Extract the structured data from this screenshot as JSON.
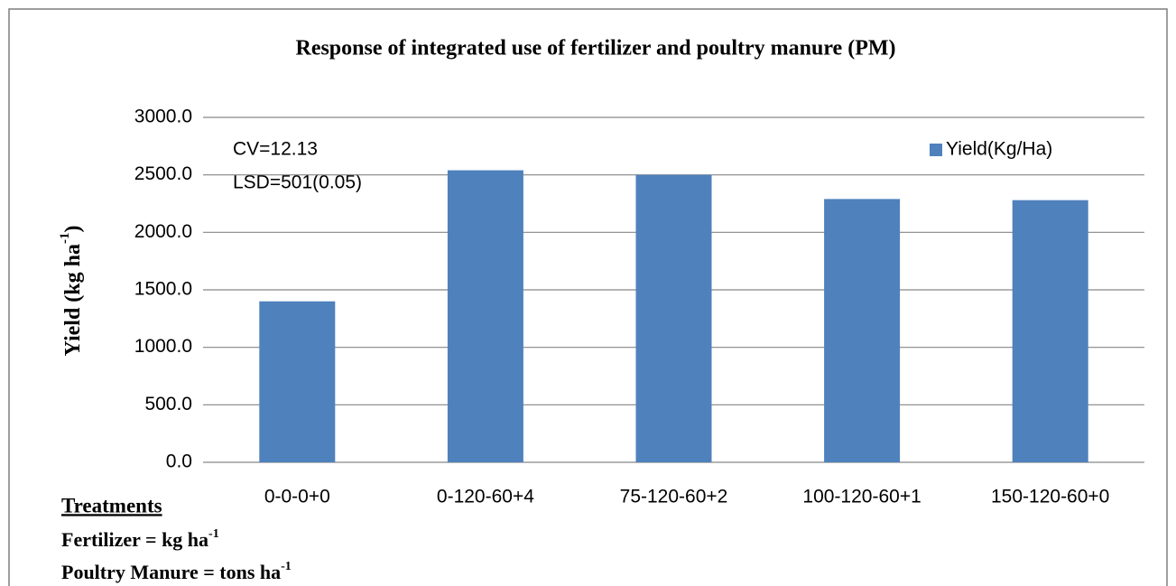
{
  "chart_data": {
    "type": "bar",
    "title": "Response of integrated use of fertilizer and poultry manure (PM)",
    "y_label": [
      "Yield (kg ha",
      "-1",
      ")"
    ],
    "categories": [
      "0-0-0+0",
      "0-120-60+4",
      "75-120-60+2",
      "100-120-60+1",
      "150-120-60+0"
    ],
    "series": [
      {
        "name": "Yield(Kg/Ha)",
        "color": "#4f81bd",
        "values": [
          1400,
          2540,
          2500,
          2290,
          2280
        ]
      }
    ],
    "ylim": [
      0,
      3000
    ],
    "yticks": [
      {
        "value": 0,
        "label": "0.0"
      },
      {
        "value": 500,
        "label": "500.0"
      },
      {
        "value": 1000,
        "label": "1000.0"
      },
      {
        "value": 1500,
        "label": "1500.0"
      },
      {
        "value": 2000,
        "label": "2000.0"
      },
      {
        "value": 2500,
        "label": "2500.0"
      },
      {
        "value": 3000,
        "label": "3000.0"
      }
    ],
    "grid": true,
    "legend": "top-right",
    "annotations": [
      "CV=12.13",
      "LSD=501(0.05)"
    ],
    "footnote": {
      "heading": "Treatments",
      "lines": [
        [
          "Fertilizer = kg ha",
          "-1"
        ],
        [
          "Poultry Manure = tons ha",
          "-1"
        ]
      ]
    }
  }
}
